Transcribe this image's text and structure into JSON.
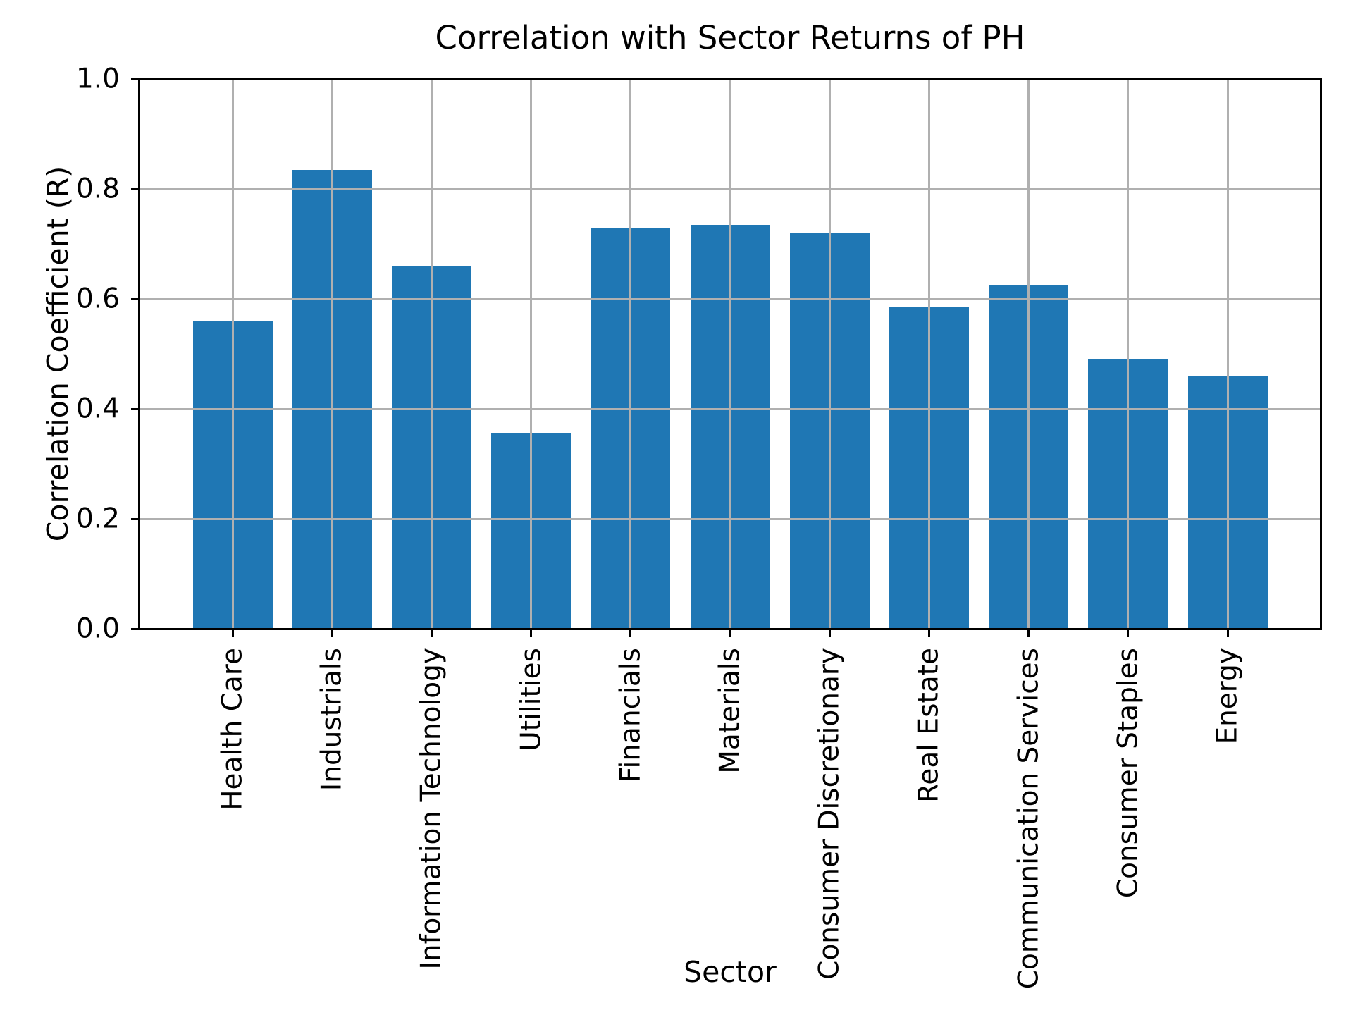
{
  "chart_data": {
    "type": "bar",
    "title": "Correlation with Sector Returns of PH",
    "xlabel": "Sector",
    "ylabel": "Correlation Coefficient (R)",
    "categories": [
      "Health Care",
      "Industrials",
      "Information Technology",
      "Utilities",
      "Financials",
      "Materials",
      "Consumer Discretionary",
      "Real Estate",
      "Communication Services",
      "Consumer Staples",
      "Energy"
    ],
    "values": [
      0.56,
      0.835,
      0.66,
      0.355,
      0.73,
      0.735,
      0.72,
      0.585,
      0.625,
      0.49,
      0.46
    ],
    "ylim": [
      0.0,
      1.0
    ],
    "ytick_labels": [
      "0.0",
      "0.2",
      "0.4",
      "0.6",
      "0.8",
      "1.0"
    ],
    "x_tick_rotation_deg": 90,
    "grid": true,
    "legend": "none",
    "bar_color": "#1f77b4",
    "grid_color": "#b0b0b0",
    "axis_color": "#000000",
    "background_color": "#ffffff"
  }
}
